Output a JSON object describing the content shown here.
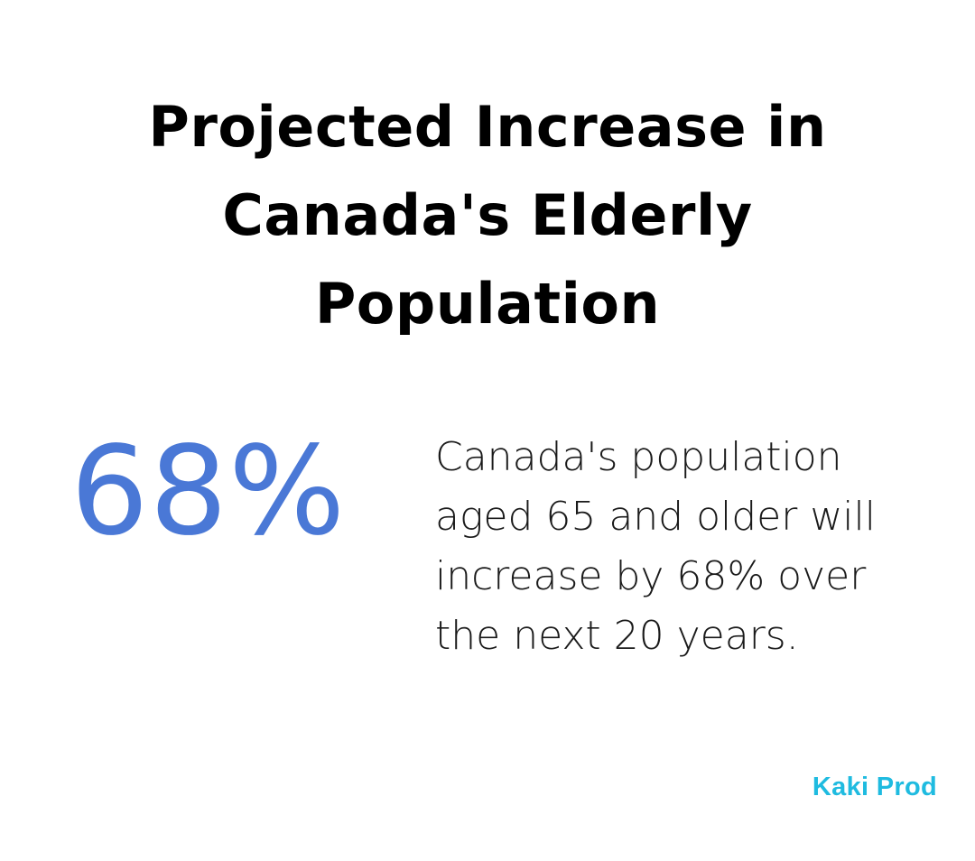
{
  "title": "Projected Increase in Canada's Elderly Population",
  "stat": {
    "value": "68%",
    "description": "Canada's population aged 65 and older will increase by 68% over the next 20 years."
  },
  "brand": {
    "name": "Kaki Prod",
    "color": "#1fbbe0"
  },
  "colors": {
    "accent": "#4a78d6",
    "text": "#000000",
    "background": "#ffffff"
  }
}
